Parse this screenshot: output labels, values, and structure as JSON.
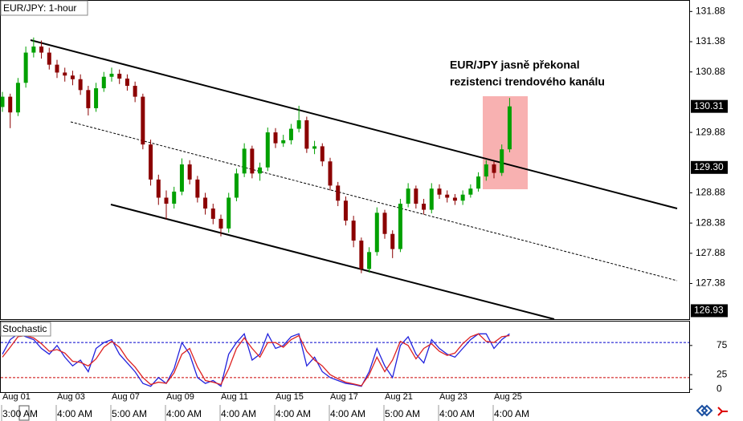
{
  "chart_data": {
    "type": "candlestick",
    "title": "EUR/JPY: 1-hour",
    "annotation": [
      "EUR/JPY jasně překonal",
      "rezistenci trendového kanálu"
    ],
    "categories": [
      "Aug 01",
      null,
      null,
      null,
      null,
      null,
      null,
      "Aug 03",
      null,
      null,
      null,
      null,
      null,
      null,
      "Aug 07",
      null,
      null,
      null,
      null,
      null,
      null,
      "Aug 09",
      null,
      null,
      null,
      null,
      null,
      null,
      "Aug 11",
      null,
      null,
      null,
      null,
      null,
      null,
      "Aug 15",
      null,
      null,
      null,
      null,
      null,
      null,
      "Aug 17",
      null,
      null,
      null,
      null,
      null,
      null,
      "Aug 21",
      null,
      null,
      null,
      null,
      null,
      null,
      "Aug 23",
      null,
      null,
      null,
      null,
      null,
      null,
      "Aug 25",
      null,
      null
    ],
    "times": [
      "3:00 AM",
      null,
      null,
      null,
      null,
      null,
      null,
      "4:00 AM",
      null,
      null,
      null,
      null,
      null,
      null,
      "5:00 AM",
      null,
      null,
      null,
      null,
      null,
      null,
      "4:00 AM",
      null,
      null,
      null,
      null,
      null,
      null,
      "4:00 AM",
      null,
      null,
      null,
      null,
      null,
      null,
      "4:00 AM",
      null,
      null,
      null,
      null,
      null,
      null,
      "4:00 AM",
      null,
      null,
      null,
      null,
      null,
      null,
      "5:00 AM",
      null,
      null,
      null,
      null,
      null,
      null,
      "4:00 AM",
      null,
      null,
      null,
      null,
      null,
      null,
      "4:00 AM",
      null,
      null
    ],
    "open": [
      130.3,
      130.47,
      130.21,
      130.7,
      131.2,
      131.3,
      131.2,
      131.0,
      130.87,
      130.82,
      130.76,
      130.58,
      130.28,
      130.61,
      130.8,
      130.85,
      130.77,
      130.65,
      130.47,
      129.68,
      129.1,
      128.8,
      128.7,
      128.9,
      129.35,
      129.1,
      128.8,
      128.62,
      128.45,
      128.29,
      128.8,
      129.2,
      129.61,
      129.2,
      129.3,
      129.88,
      129.7,
      129.75,
      129.94,
      130.08,
      129.61,
      129.65,
      129.4,
      129.0,
      128.75,
      128.42,
      128.09,
      127.62,
      127.9,
      128.55,
      128.2,
      127.95,
      128.7,
      128.95,
      128.7,
      128.6,
      128.95,
      128.85,
      128.8,
      128.75,
      128.85,
      128.95,
      129.15,
      129.35,
      129.21,
      129.6
    ],
    "high": [
      130.55,
      130.52,
      130.78,
      131.3,
      131.45,
      131.4,
      131.28,
      131.08,
      130.95,
      130.9,
      130.84,
      130.65,
      130.7,
      130.88,
      130.95,
      130.92,
      130.84,
      130.72,
      130.52,
      129.76,
      129.18,
      128.92,
      128.98,
      129.45,
      129.42,
      129.16,
      128.88,
      128.7,
      128.52,
      128.88,
      129.28,
      129.7,
      129.66,
      129.38,
      129.96,
      129.95,
      129.84,
      130.02,
      130.32,
      130.14,
      129.74,
      129.7,
      129.46,
      129.06,
      128.82,
      128.5,
      128.14,
      127.98,
      128.64,
      128.6,
      128.26,
      128.78,
      129.04,
      129.0,
      128.78,
      129.04,
      129.02,
      128.92,
      128.86,
      128.92,
      129.02,
      129.22,
      129.42,
      129.4,
      129.68,
      130.45
    ],
    "low": [
      130.22,
      129.95,
      130.15,
      130.62,
      131.12,
      131.1,
      130.92,
      130.78,
      130.72,
      130.66,
      130.5,
      130.16,
      130.22,
      130.55,
      130.72,
      130.68,
      130.57,
      130.38,
      129.6,
      129.0,
      128.68,
      128.44,
      128.62,
      128.84,
      129.02,
      128.72,
      128.52,
      128.36,
      128.16,
      128.22,
      128.74,
      129.14,
      129.12,
      129.08,
      129.24,
      129.62,
      129.64,
      129.68,
      129.88,
      129.54,
      129.52,
      129.32,
      128.92,
      128.66,
      128.34,
      127.98,
      127.55,
      127.56,
      127.84,
      128.12,
      127.8,
      127.9,
      128.64,
      128.62,
      128.52,
      128.54,
      128.78,
      128.72,
      128.68,
      128.68,
      128.8,
      128.9,
      129.08,
      129.12,
      129.16,
      129.55
    ],
    "close": [
      130.47,
      130.21,
      130.7,
      131.2,
      131.3,
      131.2,
      131.0,
      130.87,
      130.82,
      130.76,
      130.58,
      130.28,
      130.61,
      130.8,
      130.85,
      130.77,
      130.65,
      130.47,
      129.68,
      129.1,
      128.8,
      128.7,
      128.9,
      129.35,
      129.1,
      128.8,
      128.62,
      128.45,
      128.29,
      128.8,
      129.2,
      129.61,
      129.2,
      129.3,
      129.88,
      129.7,
      129.75,
      129.94,
      130.08,
      129.61,
      129.65,
      129.4,
      129.0,
      128.75,
      128.42,
      128.09,
      127.62,
      127.9,
      128.55,
      128.2,
      127.95,
      128.7,
      128.95,
      128.7,
      128.6,
      128.95,
      128.85,
      128.8,
      128.75,
      128.85,
      128.95,
      129.15,
      129.35,
      129.21,
      129.6,
      130.31
    ],
    "up_color": "#00a000",
    "down_color": "#8b0000",
    "ylim": [
      126.79,
      132.07
    ],
    "yticks": [
      131.88,
      131.38,
      130.88,
      129.88,
      128.88,
      128.38,
      127.88,
      127.38
    ],
    "price_labels": [
      130.31,
      {
        "value": 129.3,
        "label": "129.30"
      },
      126.93
    ],
    "stochastic": {
      "label": "Stochastic",
      "ylim": [
        -5,
        116
      ],
      "yticks": [
        75,
        25,
        0
      ],
      "levels": [
        {
          "value": 80,
          "color": "#0000cc"
        },
        {
          "value": 20,
          "color": "#cc0000"
        }
      ],
      "k": {
        "color": "#2222dd",
        "values": [
          60,
          85,
          95,
          90,
          85,
          70,
          60,
          75,
          55,
          40,
          50,
          30,
          70,
          80,
          85,
          60,
          45,
          30,
          10,
          5,
          20,
          10,
          35,
          80,
          60,
          20,
          10,
          15,
          5,
          60,
          80,
          95,
          50,
          60,
          95,
          70,
          75,
          90,
          95,
          40,
          55,
          30,
          20,
          15,
          10,
          8,
          5,
          30,
          70,
          40,
          20,
          75,
          90,
          60,
          45,
          85,
          70,
          60,
          55,
          70,
          85,
          95,
          95,
          70,
          85,
          95
        ]
      },
      "d": {
        "color": "#dd2222",
        "values": [
          55,
          72,
          90,
          92,
          88,
          78,
          65,
          68,
          62,
          48,
          46,
          40,
          52,
          72,
          82,
          72,
          52,
          38,
          20,
          8,
          12,
          10,
          28,
          60,
          70,
          38,
          15,
          12,
          8,
          35,
          70,
          88,
          70,
          55,
          80,
          80,
          72,
          85,
          92,
          65,
          50,
          40,
          25,
          18,
          12,
          9,
          6,
          25,
          55,
          30,
          50,
          82,
          75,
          52,
          70,
          78,
          65,
          58,
          62,
          78,
          90,
          95,
          82,
          80,
          90,
          92
        ]
      }
    }
  }
}
